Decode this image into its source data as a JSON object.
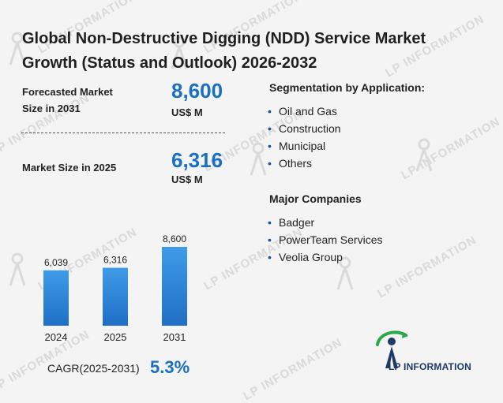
{
  "title_line1": "Global Non-Destructive Digging (NDD) Service Market",
  "title_line2": "Growth (Status and Outlook) 2026-2032",
  "forecast": {
    "label_line1": "Forecasted Market",
    "label_line2": "Size in 2031",
    "value": "8,600",
    "unit": "US$ M"
  },
  "current": {
    "label": "Market Size in 2025",
    "value": "6,316",
    "unit": "US$ M"
  },
  "segmentation": {
    "heading": "Segmentation by Application:",
    "items": [
      "Oil and Gas",
      "Construction",
      "Municipal",
      "Others"
    ]
  },
  "companies": {
    "heading": "Major Companies",
    "items": [
      "Badger",
      "PowerTeam Services",
      "Veolia Group"
    ]
  },
  "cagr": {
    "label": "CAGR(2025-2031)",
    "value": "5.3%"
  },
  "logo": {
    "text": "LP INFORMATION"
  },
  "watermark_text": "LP INFORMATION",
  "colors": {
    "bar_top": "#3f9be8",
    "bar_bottom": "#1f6fc4",
    "accent": "#1a6fc0",
    "logo_green": "#2aa84a",
    "logo_blue": "#1b3a6b"
  },
  "chart_data": {
    "type": "bar",
    "categories": [
      "2024",
      "2025",
      "2031"
    ],
    "values": [
      6039,
      6316,
      8600
    ],
    "value_labels": [
      "6,039",
      "6,316",
      "8,600"
    ],
    "title": "",
    "xlabel": "",
    "ylabel": "",
    "ylim": [
      0,
      10000
    ],
    "grid": false,
    "legend": "none"
  }
}
